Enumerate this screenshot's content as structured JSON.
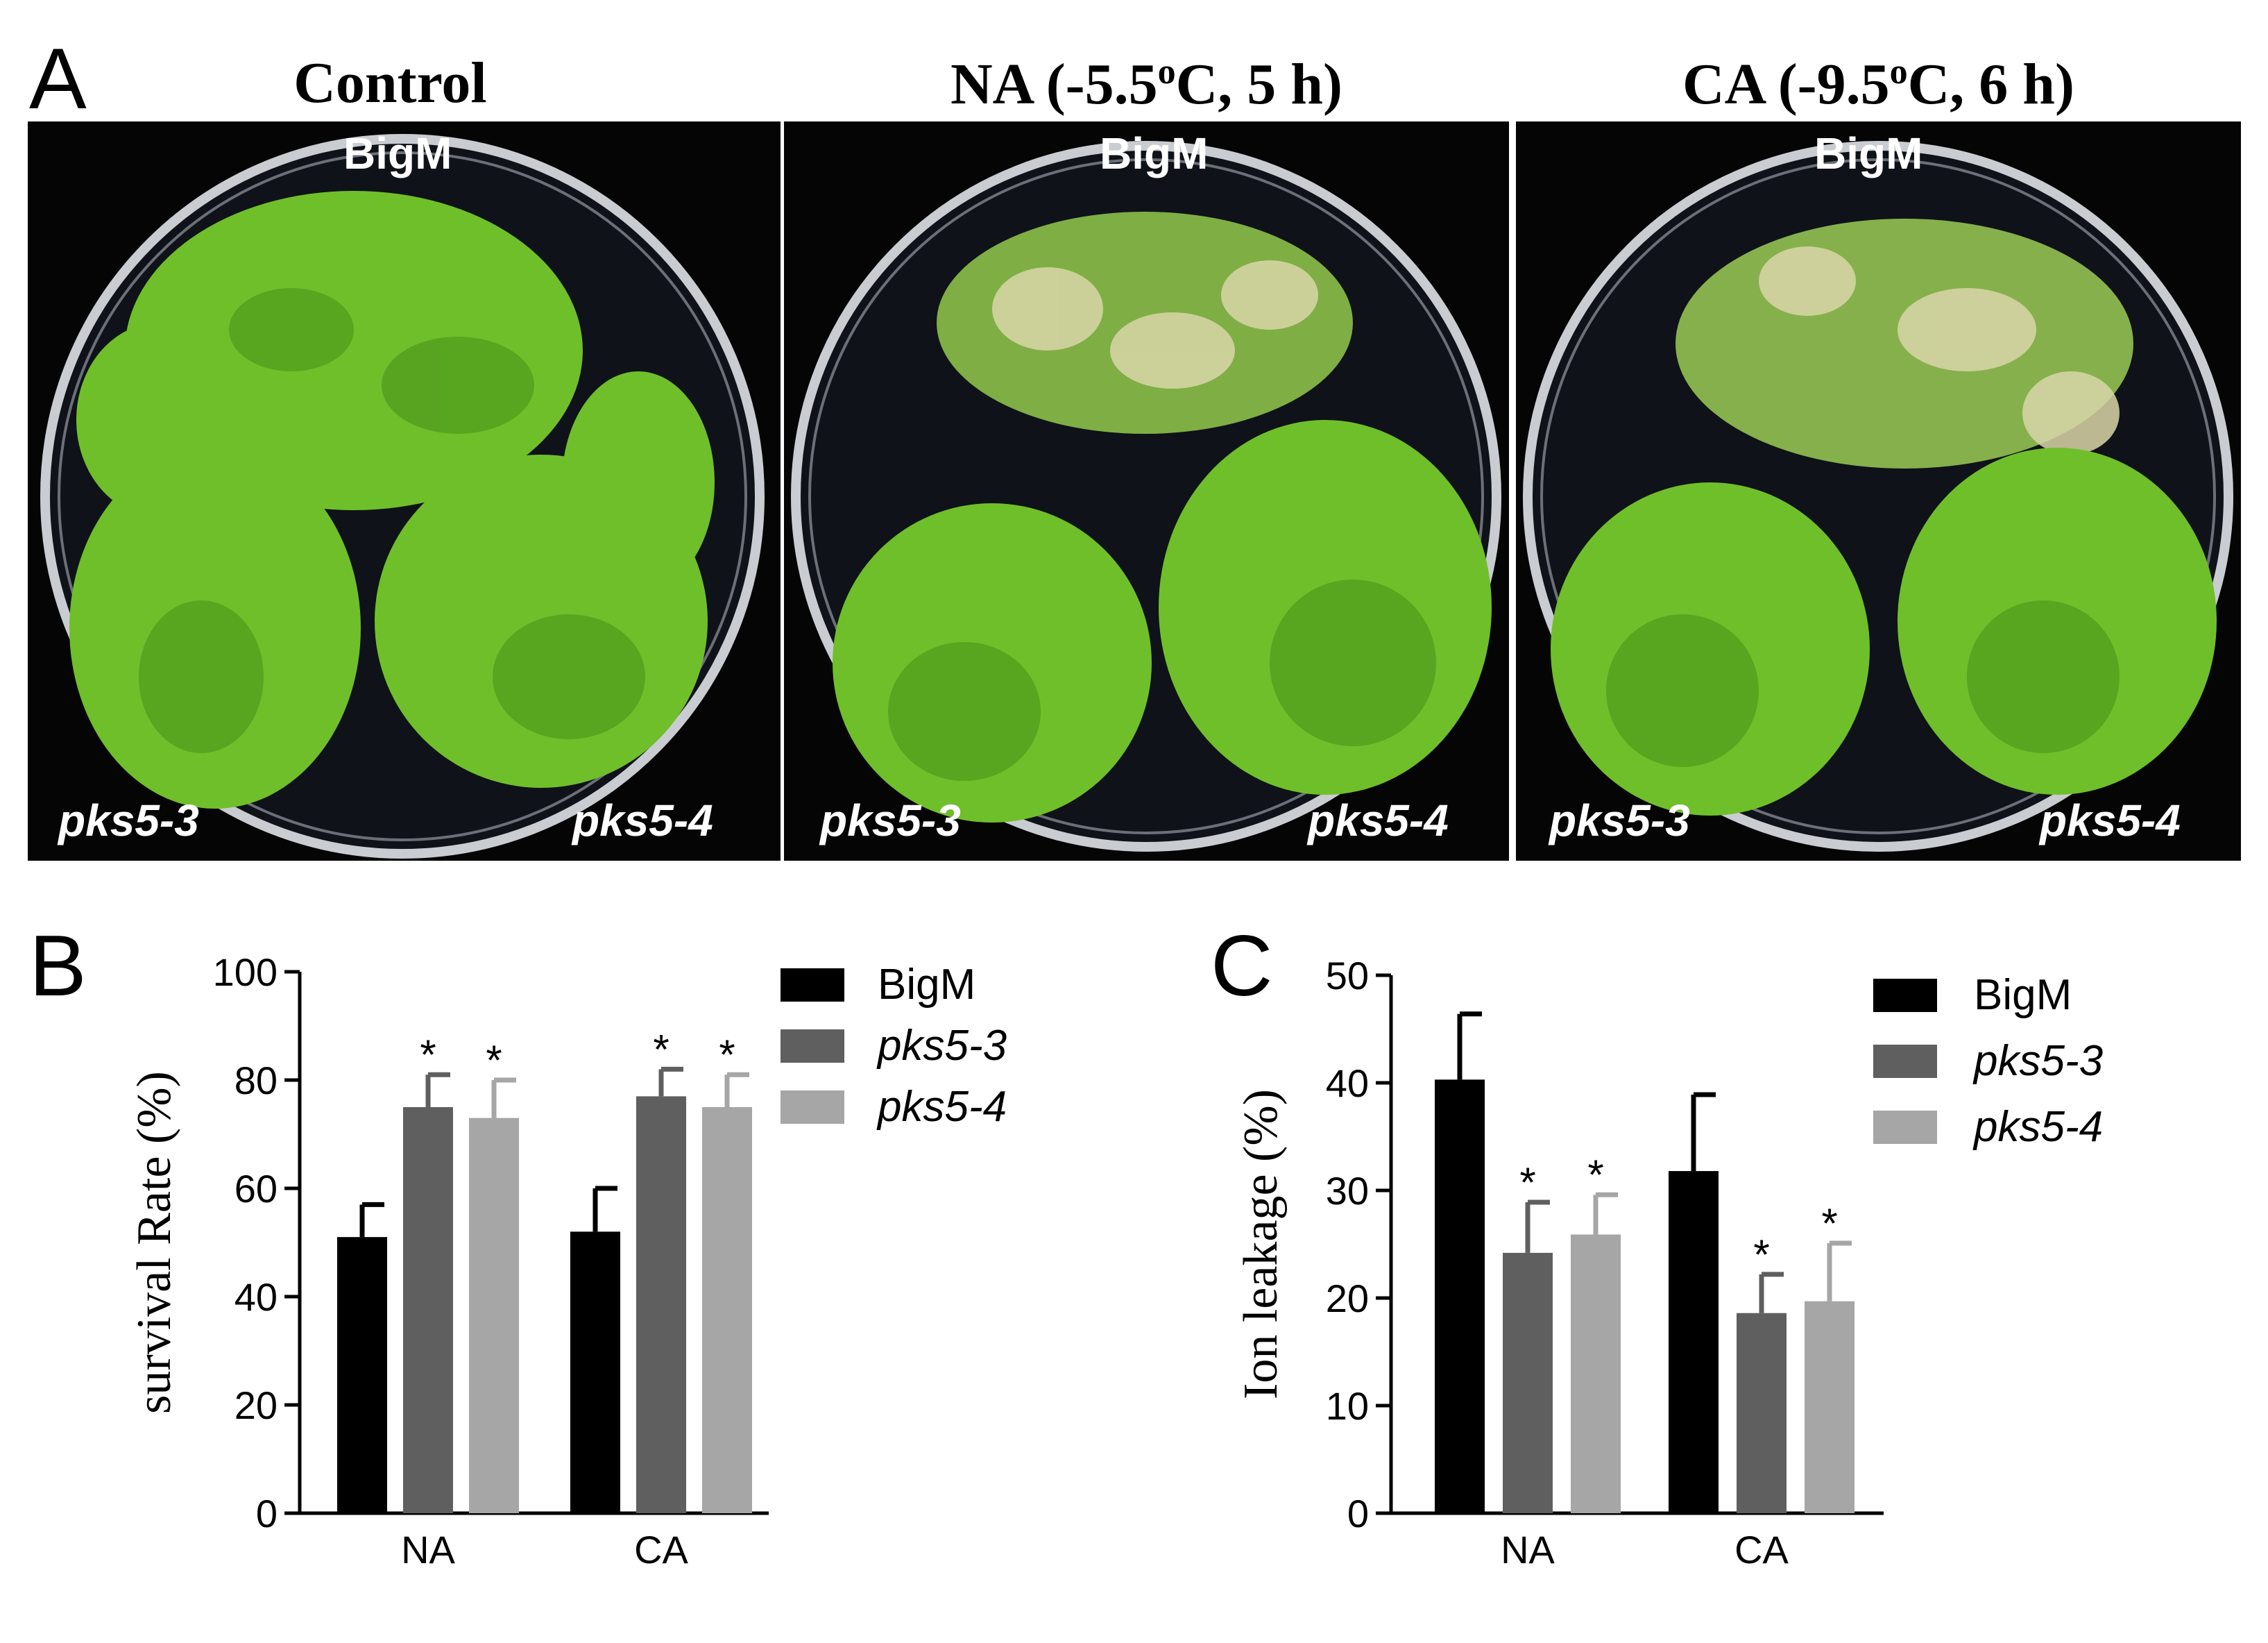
{
  "panels": {
    "A": {
      "letter": "A",
      "columns": [
        {
          "title": "Control",
          "title_sup": "",
          "title_tail": "",
          "labels": {
            "top": "BigM",
            "left": "pks5-3",
            "right": "pks5-4"
          }
        },
        {
          "title": "NA (-5.5",
          "title_sup": "o",
          "title_tail": "C, 5 h)",
          "labels": {
            "top": "BigM",
            "left": "pks5-3",
            "right": "pks5-4"
          }
        },
        {
          "title": "CA (-9.5",
          "title_sup": "o",
          "title_tail": "C, 6 h)",
          "labels": {
            "top": "BigM",
            "left": "pks5-3",
            "right": "pks5-4"
          }
        }
      ]
    },
    "B": {
      "letter": "B"
    },
    "C": {
      "letter": "C"
    }
  },
  "colors": {
    "BigM": "#000000",
    "pks5-3": "#5f5f5f",
    "pks5-4": "#a6a6a6",
    "photo_background": "#050505",
    "leaf_green": "#6fbf2a",
    "leaf_pale": "#d9d6a8"
  },
  "chart_data": [
    {
      "type": "bar",
      "panel": "B",
      "ylabel": "survival Rate (%)",
      "ylim": [
        0,
        100
      ],
      "yticks": [
        "0",
        "20",
        "40",
        "60",
        "80",
        "100"
      ],
      "categories": [
        "NA",
        "CA"
      ],
      "series": [
        {
          "name": "BigM",
          "italic": false,
          "values": [
            51,
            52
          ],
          "errors": [
            6,
            8
          ],
          "significant": [
            false,
            false
          ]
        },
        {
          "name": "pks5-3",
          "italic": true,
          "values": [
            75,
            77
          ],
          "errors": [
            6,
            5
          ],
          "significant": [
            true,
            true
          ]
        },
        {
          "name": "pks5-4",
          "italic": true,
          "values": [
            73,
            75
          ],
          "errors": [
            7,
            6
          ],
          "significant": [
            true,
            true
          ]
        }
      ],
      "significance_mark": "*",
      "legend": "top-right"
    },
    {
      "type": "bar",
      "panel": "C",
      "ylabel": "Ion leakage (%)",
      "ylim": [
        0,
        50
      ],
      "yticks": [
        "0",
        "10",
        "20",
        "30",
        "40",
        "50"
      ],
      "categories": [
        "NA",
        "CA"
      ],
      "series": [
        {
          "name": "BigM",
          "italic": false,
          "values": [
            40.3,
            31.8
          ],
          "errors": [
            6.1,
            7.1
          ],
          "significant": [
            false,
            false
          ]
        },
        {
          "name": "pks5-3",
          "italic": true,
          "values": [
            24.2,
            18.6
          ],
          "errors": [
            4.7,
            3.6
          ],
          "significant": [
            true,
            true
          ]
        },
        {
          "name": "pks5-4",
          "italic": true,
          "values": [
            25.9,
            19.7
          ],
          "errors": [
            3.7,
            5.4
          ],
          "significant": [
            true,
            true
          ]
        }
      ],
      "significance_mark": "*",
      "legend": "top-right"
    }
  ]
}
